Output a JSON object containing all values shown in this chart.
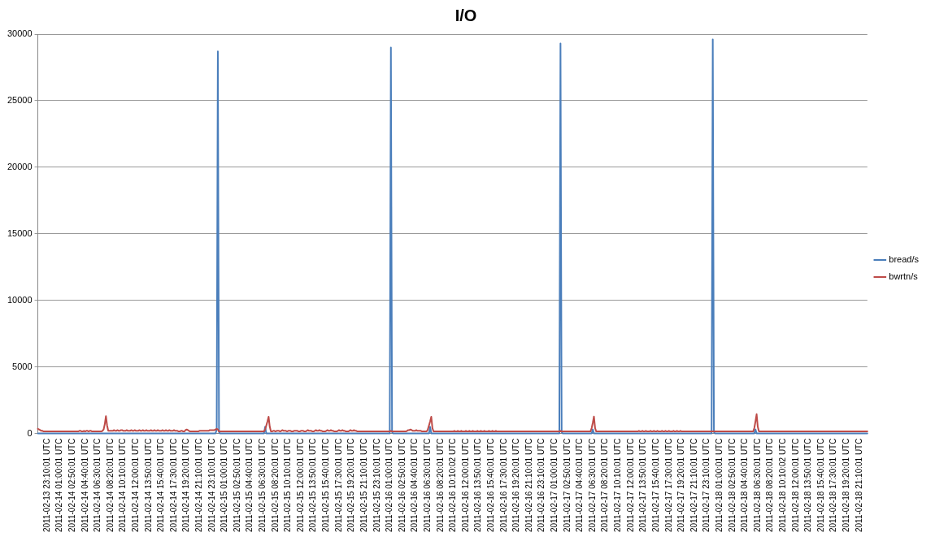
{
  "chart_data": {
    "type": "line",
    "title": "I/O",
    "categories": [
      null,
      null,
      null,
      null,
      null,
      null,
      null,
      null,
      "2011-02-13 23:10:01 UTC",
      null,
      null,
      null,
      null,
      null,
      null,
      null,
      null,
      null,
      null,
      "2011-02-14 01:00:01 UTC",
      null,
      null,
      null,
      null,
      null,
      null,
      null,
      null,
      null,
      null,
      "2011-02-14 02:50:01 UTC",
      null,
      null,
      null,
      null,
      null,
      null,
      null,
      null,
      null,
      null,
      "2011-02-14 04:40:01 UTC",
      null,
      null,
      null,
      null,
      null,
      null,
      null,
      null,
      null,
      null,
      "2011-02-14 06:30:01 UTC",
      null,
      null,
      null,
      null,
      null,
      null,
      null,
      null,
      null,
      null,
      "2011-02-14 08:20:01 UTC",
      null,
      null,
      null,
      null,
      null,
      null,
      null,
      null,
      null,
      null,
      "2011-02-14 10:10:01 UTC",
      null,
      null,
      null,
      null,
      null,
      null,
      null,
      null,
      null,
      null,
      "2011-02-14 12:00:01 UTC",
      null,
      null,
      null,
      null,
      null,
      null,
      null,
      null,
      null,
      null,
      "2011-02-14 13:50:01 UTC",
      null,
      null,
      null,
      null,
      null,
      null,
      null,
      null,
      null,
      null,
      "2011-02-14 15:40:01 UTC",
      null,
      null,
      null,
      null,
      null,
      null,
      null,
      null,
      null,
      null,
      "2011-02-14 17:30:01 UTC",
      null,
      null,
      null,
      null,
      null,
      null,
      null,
      null,
      null,
      null,
      "2011-02-14 19:20:01 UTC",
      null,
      null,
      null,
      null,
      null,
      null,
      null,
      null,
      null,
      null,
      "2011-02-14 21:10:01 UTC",
      null,
      null,
      null,
      null,
      null,
      null,
      null,
      null,
      null,
      null,
      "2011-02-14 23:10:01 UTC",
      null,
      null,
      null,
      null,
      null,
      null,
      null,
      null,
      null,
      null,
      "2011-02-15 01:00:01 UTC",
      null,
      null,
      null,
      null,
      null,
      null,
      null,
      null,
      null,
      null,
      "2011-02-15 02:50:01 UTC",
      null,
      null,
      null,
      null,
      null,
      null,
      null,
      null,
      null,
      null,
      "2011-02-15 04:40:01 UTC",
      null,
      null,
      null,
      null,
      null,
      null,
      null,
      null,
      null,
      null,
      "2011-02-15 06:30:01 UTC",
      null,
      null,
      null,
      null,
      null,
      null,
      null,
      null,
      null,
      null,
      "2011-02-15 08:20:01 UTC",
      null,
      null,
      null,
      null,
      null,
      null,
      null,
      null,
      null,
      null,
      "2011-02-15 10:10:01 UTC",
      null,
      null,
      null,
      null,
      null,
      null,
      null,
      null,
      null,
      null,
      "2011-02-15 12:00:01 UTC",
      null,
      null,
      null,
      null,
      null,
      null,
      null,
      null,
      null,
      null,
      "2011-02-15 13:50:01 UTC",
      null,
      null,
      null,
      null,
      null,
      null,
      null,
      null,
      null,
      null,
      "2011-02-15 15:40:01 UTC",
      null,
      null,
      null,
      null,
      null,
      null,
      null,
      null,
      null,
      null,
      "2011-02-15 17:30:01 UTC",
      null,
      null,
      null,
      null,
      null,
      null,
      null,
      null,
      null,
      null,
      "2011-02-15 19:20:01 UTC",
      null,
      null,
      null,
      null,
      null,
      null,
      null,
      null,
      null,
      null,
      "2011-02-15 21:10:01 UTC",
      null,
      null,
      null,
      null,
      null,
      null,
      null,
      null,
      null,
      null,
      "2011-02-15 23:10:01 UTC",
      null,
      null,
      null,
      null,
      null,
      null,
      null,
      null,
      null,
      null,
      "2011-02-16 01:00:01 UTC",
      null,
      null,
      null,
      null,
      null,
      null,
      null,
      null,
      null,
      null,
      "2011-02-16 02:50:01 UTC",
      null,
      null,
      null,
      null,
      null,
      null,
      null,
      null,
      null,
      null,
      "2011-02-16 04:40:01 UTC",
      null,
      null,
      null,
      null,
      null,
      null,
      null,
      null,
      null,
      null,
      "2011-02-16 06:30:01 UTC",
      null,
      null,
      null,
      null,
      null,
      null,
      null,
      null,
      null,
      null,
      "2011-02-16 08:20:01 UTC",
      null,
      null,
      null,
      null,
      null,
      null,
      null,
      null,
      null,
      null,
      "2011-02-16 10:10:02 UTC",
      null,
      null,
      null,
      null,
      null,
      null,
      null,
      null,
      null,
      null,
      "2011-02-16 12:00:01 UTC",
      null,
      null,
      null,
      null,
      null,
      null,
      null,
      null,
      null,
      null,
      "2011-02-16 13:50:01 UTC",
      null,
      null,
      null,
      null,
      null,
      null,
      null,
      null,
      null,
      null,
      "2011-02-16 15:40:01 UTC",
      null,
      null,
      null,
      null,
      null,
      null,
      null,
      null,
      null,
      null,
      "2011-02-16 17:30:01 UTC",
      null,
      null,
      null,
      null,
      null,
      null,
      null,
      null,
      null,
      null,
      "2011-02-16 19:20:01 UTC",
      null,
      null,
      null,
      null,
      null,
      null,
      null,
      null,
      null,
      null,
      "2011-02-16 21:10:01 UTC",
      null,
      null,
      null,
      null,
      null,
      null,
      null,
      null,
      null,
      null,
      "2011-02-16 23:10:01 UTC",
      null,
      null,
      null,
      null,
      null,
      null,
      null,
      null,
      null,
      null,
      "2011-02-17 01:00:01 UTC",
      null,
      null,
      null,
      null,
      null,
      null,
      null,
      null,
      null,
      null,
      "2011-02-17 02:50:01 UTC",
      null,
      null,
      null,
      null,
      null,
      null,
      null,
      null,
      null,
      null,
      "2011-02-17 04:40:01 UTC",
      null,
      null,
      null,
      null,
      null,
      null,
      null,
      null,
      null,
      null,
      "2011-02-17 06:30:01 UTC",
      null,
      null,
      null,
      null,
      null,
      null,
      null,
      null,
      null,
      null,
      "2011-02-17 08:20:01 UTC",
      null,
      null,
      null,
      null,
      null,
      null,
      null,
      null,
      null,
      null,
      "2011-02-17 10:10:01 UTC",
      null,
      null,
      null,
      null,
      null,
      null,
      null,
      null,
      null,
      null,
      "2011-02-17 12:00:01 UTC",
      null,
      null,
      null,
      null,
      null,
      null,
      null,
      null,
      null,
      null,
      "2011-02-17 13:50:01 UTC",
      null,
      null,
      null,
      null,
      null,
      null,
      null,
      null,
      null,
      null,
      "2011-02-17 15:40:01 UTC",
      null,
      null,
      null,
      null,
      null,
      null,
      null,
      null,
      null,
      null,
      "2011-02-17 17:30:01 UTC",
      null,
      null,
      null,
      null,
      null,
      null,
      null,
      null,
      null,
      null,
      "2011-02-17 19:20:01 UTC",
      null,
      null,
      null,
      null,
      null,
      null,
      null,
      null,
      null,
      null,
      "2011-02-17 21:10:01 UTC",
      null,
      null,
      null,
      null,
      null,
      null,
      null,
      null,
      null,
      null,
      "2011-02-17 23:10:01 UTC",
      null,
      null,
      null,
      null,
      null,
      null,
      null,
      null,
      null,
      null,
      "2011-02-18 01:00:01 UTC",
      null,
      null,
      null,
      null,
      null,
      null,
      null,
      null,
      null,
      null,
      "2011-02-18 02:50:01 UTC",
      null,
      null,
      null,
      null,
      null,
      null,
      null,
      null,
      null,
      null,
      "2011-02-18 04:40:01 UTC",
      null,
      null,
      null,
      null,
      null,
      null,
      null,
      null,
      null,
      null,
      "2011-02-18 06:30:01 UTC",
      null,
      null,
      null,
      null,
      null,
      null,
      null,
      null,
      null,
      null,
      "2011-02-18 08:20:01 UTC",
      null,
      null,
      null,
      null,
      null,
      null,
      null,
      null,
      null,
      null,
      "2011-02-18 10:10:02 UTC",
      null,
      null,
      null,
      null,
      null,
      null,
      null,
      null,
      null,
      null,
      "2011-02-18 12:00:01 UTC",
      null,
      null,
      null,
      null,
      null,
      null,
      null,
      null,
      null,
      null,
      "2011-02-18 13:50:01 UTC",
      null,
      null,
      null,
      null,
      null,
      null,
      null,
      null,
      null,
      null,
      "2011-02-18 15:40:01 UTC",
      null,
      null,
      null,
      null,
      null,
      null,
      null,
      null,
      null,
      null,
      "2011-02-18 17:30:01 UTC",
      null,
      null,
      null,
      null,
      null,
      null,
      null,
      null,
      null,
      null,
      "2011-02-18 19:20:01 UTC",
      null,
      null,
      null,
      null,
      null,
      null,
      null,
      null,
      null,
      null,
      "2011-02-18 21:10:01 UTC",
      null,
      null,
      null,
      null,
      null,
      null,
      null
    ],
    "series": [
      {
        "name": "bread/s",
        "color": "#4a7ebb",
        "values": [
          0,
          0,
          0,
          0,
          0,
          0,
          0,
          0,
          0,
          0,
          0,
          0,
          0,
          0,
          0,
          0,
          0,
          0,
          0,
          0,
          0,
          0,
          0,
          0,
          0,
          0,
          0,
          0,
          0,
          0,
          0,
          0,
          0,
          0,
          0,
          0,
          0,
          0,
          0,
          0,
          0,
          0,
          0,
          0,
          0,
          0,
          0,
          0,
          0,
          0,
          0,
          0,
          0,
          0,
          0,
          0,
          0,
          0,
          0,
          0,
          0,
          0,
          0,
          0,
          0,
          0,
          0,
          0,
          0,
          0,
          0,
          0,
          0,
          0,
          0,
          0,
          0,
          0,
          0,
          0,
          0,
          0,
          0,
          0,
          0,
          0,
          0,
          0,
          0,
          0,
          0,
          0,
          0,
          0,
          0,
          0,
          0,
          0,
          0,
          0,
          0,
          0,
          0,
          0,
          0,
          0,
          0,
          0,
          0,
          0,
          0,
          0,
          0,
          0,
          0,
          0,
          0,
          0,
          0,
          0,
          0,
          0,
          0,
          0,
          0,
          0,
          0,
          0,
          0,
          0,
          0,
          0,
          0,
          0,
          0,
          0,
          0,
          0,
          0,
          0,
          0,
          0,
          0,
          0,
          0,
          0,
          0,
          0,
          0,
          0,
          0,
          0,
          0,
          0,
          0,
          300,
          28700,
          100,
          0,
          0,
          0,
          0,
          0,
          0,
          0,
          0,
          0,
          0,
          0,
          0,
          0,
          0,
          0,
          0,
          0,
          0,
          0,
          0,
          0,
          0,
          0,
          0,
          0,
          0,
          0,
          0,
          0,
          0,
          0,
          0,
          0,
          0,
          0,
          0,
          0,
          0,
          0,
          500,
          0,
          0,
          0,
          0,
          0,
          0,
          0,
          0,
          0,
          0,
          0,
          0,
          0,
          0,
          0,
          0,
          0,
          0,
          0,
          0,
          0,
          0,
          0,
          0,
          0,
          0,
          0,
          0,
          0,
          0,
          0,
          0,
          0,
          0,
          0,
          0,
          0,
          0,
          0,
          0,
          0,
          0,
          0,
          0,
          0,
          0,
          0,
          0,
          0,
          0,
          0,
          0,
          0,
          0,
          0,
          0,
          0,
          0,
          0,
          0,
          0,
          0,
          0,
          0,
          0,
          0,
          0,
          0,
          0,
          0,
          0,
          0,
          0,
          0,
          0,
          0,
          0,
          0,
          0,
          0,
          0,
          0,
          0,
          0,
          0,
          0,
          0,
          0,
          0,
          0,
          0,
          0,
          0,
          0,
          0,
          0,
          0,
          0,
          0,
          0,
          0,
          0,
          0,
          0,
          0,
          0,
          0,
          0,
          29000,
          100,
          0,
          0,
          0,
          0,
          0,
          0,
          0,
          0,
          0,
          0,
          0,
          0,
          0,
          0,
          0,
          0,
          0,
          0,
          0,
          0,
          0,
          0,
          0,
          0,
          0,
          0,
          0,
          0,
          0,
          0,
          0,
          0,
          500,
          0,
          0,
          0,
          0,
          0,
          0,
          0,
          0,
          0,
          0,
          0,
          0,
          0,
          0,
          0,
          0,
          0,
          0,
          0,
          0,
          0,
          0,
          0,
          0,
          0,
          0,
          0,
          0,
          0,
          0,
          0,
          0,
          0,
          0,
          0,
          0,
          0,
          0,
          0,
          0,
          0,
          0,
          0,
          0,
          0,
          0,
          0,
          0,
          0,
          0,
          0,
          0,
          0,
          0,
          0,
          0,
          0,
          0,
          0,
          0,
          0,
          0,
          0,
          0,
          0,
          0,
          0,
          0,
          0,
          0,
          0,
          0,
          0,
          0,
          0,
          0,
          0,
          0,
          0,
          0,
          0,
          0,
          0,
          0,
          0,
          0,
          0,
          0,
          0,
          0,
          0,
          0,
          0,
          0,
          0,
          0,
          0,
          0,
          0,
          0,
          0,
          0,
          0,
          0,
          0,
          0,
          0,
          0,
          0,
          0,
          0,
          0,
          29300,
          100,
          0,
          0,
          0,
          0,
          0,
          0,
          0,
          0,
          0,
          0,
          0,
          0,
          0,
          0,
          0,
          0,
          0,
          0,
          0,
          0,
          0,
          0,
          0,
          0,
          0,
          0,
          300,
          0,
          0,
          0,
          0,
          0,
          0,
          0,
          0,
          0,
          0,
          0,
          0,
          0,
          0,
          0,
          0,
          0,
          0,
          0,
          0,
          0,
          0,
          0,
          0,
          0,
          0,
          0,
          0,
          0,
          0,
          0,
          0,
          0,
          0,
          0,
          0,
          0,
          0,
          0,
          0,
          0,
          0,
          0,
          0,
          0,
          0,
          0,
          0,
          0,
          0,
          0,
          0,
          0,
          0,
          0,
          0,
          0,
          0,
          0,
          0,
          0,
          0,
          0,
          0,
          0,
          0,
          0,
          0,
          0,
          0,
          0,
          0,
          0,
          0,
          0,
          0,
          0,
          0,
          0,
          0,
          0,
          0,
          0,
          0,
          0,
          0,
          0,
          0,
          0,
          0,
          0,
          0,
          0,
          0,
          0,
          0,
          0,
          0,
          0,
          0,
          0,
          0,
          0,
          29600,
          100,
          0,
          0,
          0,
          0,
          0,
          0,
          0,
          0,
          0,
          0,
          0,
          0,
          0,
          0,
          0,
          0,
          0,
          0,
          0,
          0,
          0,
          0,
          0,
          0,
          0,
          0,
          0,
          0,
          0,
          0,
          0,
          0,
          0,
          0,
          0,
          300,
          0,
          0,
          0,
          0,
          0,
          0,
          0,
          0,
          0,
          0,
          0,
          0,
          0,
          0,
          0,
          0,
          0,
          0,
          0,
          0,
          0,
          0,
          0,
          0,
          0,
          0,
          0,
          0,
          0,
          0,
          0,
          0,
          0,
          0,
          0,
          0,
          0,
          0,
          0,
          0,
          0,
          0,
          0,
          0,
          0,
          0,
          0,
          0,
          0,
          0,
          0,
          0,
          0,
          0,
          0,
          0,
          0,
          0,
          0,
          0,
          0,
          0,
          0,
          0,
          0,
          0,
          0,
          0,
          0,
          0,
          0,
          0,
          0,
          0,
          0,
          0,
          0,
          0,
          0,
          0,
          0,
          0,
          0,
          0,
          0,
          0,
          0,
          0,
          0,
          0,
          0,
          0,
          0,
          0,
          0,
          0,
          0
        ]
      },
      {
        "name": "bwrtn/s",
        "color": "#be4b48",
        "values": [
          350,
          300,
          250,
          200,
          200,
          150,
          150,
          150,
          150,
          150,
          150,
          150,
          150,
          150,
          150,
          150,
          150,
          150,
          150,
          150,
          150,
          150,
          150,
          150,
          150,
          150,
          150,
          150,
          150,
          150,
          150,
          150,
          150,
          150,
          150,
          150,
          200,
          200,
          150,
          150,
          200,
          150,
          200,
          200,
          150,
          200,
          200,
          150,
          150,
          150,
          150,
          150,
          150,
          150,
          150,
          150,
          200,
          300,
          700,
          1300,
          600,
          200,
          200,
          200,
          200,
          200,
          250,
          200,
          200,
          250,
          200,
          200,
          250,
          250,
          200,
          200,
          200,
          250,
          200,
          200,
          200,
          250,
          200,
          200,
          250,
          200,
          200,
          200,
          250,
          200,
          200,
          250,
          200,
          200,
          250,
          200,
          200,
          200,
          250,
          200,
          200,
          250,
          200,
          200,
          250,
          200,
          200,
          200,
          250,
          200,
          200,
          250,
          200,
          200,
          250,
          200,
          200,
          200,
          250,
          200,
          200,
          200,
          150,
          150,
          200,
          200,
          150,
          150,
          250,
          300,
          250,
          200,
          150,
          150,
          150,
          150,
          150,
          150,
          150,
          150,
          200,
          200,
          200,
          200,
          200,
          200,
          200,
          200,
          200,
          250,
          250,
          250,
          250,
          250,
          300,
          350,
          300,
          150,
          150,
          150,
          150,
          150,
          150,
          150,
          150,
          150,
          150,
          150,
          150,
          150,
          150,
          150,
          150,
          150,
          150,
          150,
          150,
          150,
          150,
          150,
          150,
          150,
          150,
          150,
          150,
          150,
          150,
          150,
          150,
          150,
          150,
          150,
          150,
          150,
          150,
          150,
          150,
          300,
          600,
          900,
          1250,
          500,
          150,
          150,
          200,
          200,
          150,
          200,
          200,
          200,
          150,
          200,
          250,
          200,
          200,
          200,
          150,
          200,
          200,
          200,
          150,
          150,
          200,
          200,
          200,
          200,
          150,
          150,
          200,
          200,
          200,
          150,
          150,
          200,
          250,
          200,
          200,
          200,
          150,
          150,
          200,
          250,
          200,
          200,
          250,
          200,
          200,
          150,
          150,
          150,
          200,
          250,
          200,
          200,
          250,
          200,
          200,
          150,
          150,
          150,
          200,
          250,
          200,
          200,
          250,
          200,
          200,
          150,
          150,
          150,
          200,
          250,
          200,
          200,
          250,
          200,
          200,
          150,
          150,
          150,
          150,
          150,
          150,
          150,
          150,
          150,
          150,
          150,
          150,
          150,
          150,
          150,
          150,
          150,
          150,
          150,
          150,
          150,
          150,
          150,
          150,
          150,
          150,
          150,
          150,
          150,
          200,
          150,
          150,
          150,
          150,
          150,
          150,
          150,
          150,
          150,
          150,
          150,
          150,
          150,
          200,
          250,
          250,
          300,
          250,
          200,
          200,
          200,
          250,
          200,
          200,
          200,
          200,
          150,
          150,
          150,
          150,
          150,
          300,
          600,
          900,
          1250,
          400,
          150,
          150,
          150,
          150,
          150,
          150,
          150,
          150,
          150,
          150,
          150,
          150,
          150,
          150,
          150,
          150,
          150,
          150,
          200,
          150,
          150,
          200,
          150,
          150,
          200,
          150,
          150,
          150,
          200,
          150,
          150,
          200,
          150,
          150,
          200,
          150,
          150,
          150,
          200,
          150,
          150,
          200,
          150,
          150,
          200,
          150,
          150,
          150,
          200,
          150,
          150,
          200,
          150,
          150,
          200,
          150,
          150,
          150,
          150,
          150,
          150,
          150,
          150,
          150,
          150,
          150,
          150,
          150,
          150,
          150,
          150,
          150,
          150,
          150,
          150,
          150,
          150,
          150,
          150,
          150,
          150,
          150,
          150,
          150,
          150,
          150,
          150,
          150,
          150,
          150,
          150,
          150,
          150,
          150,
          150,
          150,
          150,
          150,
          150,
          150,
          150,
          150,
          150,
          150,
          150,
          150,
          150,
          150,
          150,
          150,
          200,
          150,
          150,
          150,
          150,
          150,
          150,
          150,
          150,
          150,
          150,
          150,
          150,
          150,
          150,
          150,
          150,
          150,
          150,
          150,
          150,
          150,
          150,
          150,
          150,
          150,
          150,
          400,
          800,
          1270,
          400,
          150,
          150,
          150,
          150,
          150,
          150,
          150,
          150,
          150,
          150,
          150,
          150,
          150,
          150,
          150,
          150,
          150,
          150,
          150,
          150,
          150,
          150,
          150,
          150,
          150,
          150,
          150,
          150,
          150,
          150,
          150,
          150,
          150,
          150,
          150,
          150,
          150,
          200,
          150,
          150,
          200,
          150,
          150,
          200,
          150,
          150,
          150,
          200,
          150,
          150,
          200,
          150,
          150,
          200,
          150,
          150,
          150,
          200,
          150,
          150,
          200,
          150,
          150,
          200,
          150,
          150,
          150,
          200,
          150,
          150,
          200,
          150,
          150,
          200,
          150,
          150,
          150,
          150,
          150,
          150,
          150,
          150,
          150,
          150,
          150,
          150,
          150,
          150,
          150,
          150,
          150,
          150,
          150,
          150,
          150,
          150,
          150,
          150,
          150,
          150,
          150,
          150,
          150,
          150,
          150,
          150,
          150,
          150,
          150,
          150,
          150,
          150,
          150,
          150,
          150,
          150,
          150,
          150,
          150,
          150,
          150,
          150,
          150,
          150,
          150,
          150,
          150,
          150,
          150,
          150,
          150,
          150,
          150,
          150,
          150,
          150,
          150,
          400,
          900,
          1450,
          500,
          150,
          150,
          150,
          150,
          150,
          150,
          150,
          150,
          150,
          150,
          150,
          150,
          150,
          150,
          150,
          150,
          150,
          150,
          150,
          150,
          150,
          150,
          150,
          150,
          150,
          150,
          150,
          150,
          150,
          150,
          150,
          150,
          150,
          150,
          150,
          150,
          150,
          150,
          150,
          150,
          150,
          150,
          150,
          150,
          150,
          150,
          150,
          150,
          150,
          150,
          150,
          150,
          150,
          150,
          150,
          150,
          150,
          150,
          150,
          150,
          150,
          150,
          150,
          150,
          150,
          150,
          150,
          150,
          150,
          150,
          150,
          150,
          150,
          150,
          150,
          150,
          150,
          150,
          150,
          150,
          150,
          150,
          150,
          150,
          150,
          150,
          150,
          150,
          150,
          150,
          150,
          150,
          150,
          150,
          150
        ]
      }
    ],
    "ylim": [
      0,
      30000
    ],
    "yticks": [
      0,
      5000,
      10000,
      15000,
      20000,
      25000,
      30000
    ],
    "grid": "y",
    "legend": "right",
    "marker": "none",
    "line_style": "solid"
  }
}
